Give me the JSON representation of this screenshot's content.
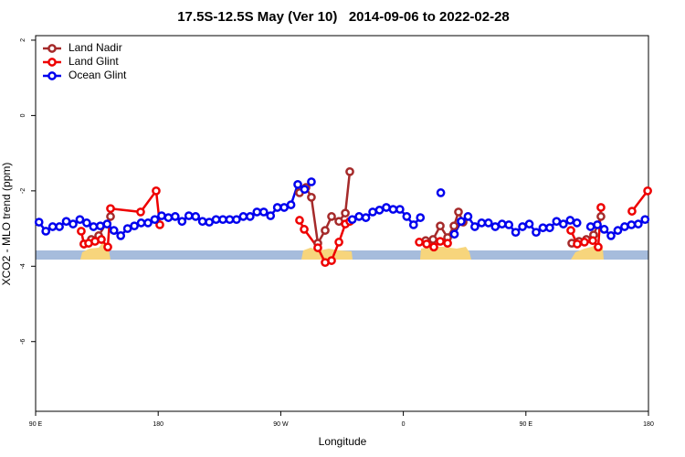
{
  "chart_data": {
    "type": "line",
    "title": "17.5S-12.5S May (Ver 10)   2014-09-06 to 2022-02-28",
    "xlabel": "Longitude",
    "ylabel": "XCO2 - MLO trend (ppm)",
    "xlim": [
      90,
      540
    ],
    "ylim": [
      -7.85,
      2.12
    ],
    "xticks": [
      {
        "value": 90,
        "label": "90 E"
      },
      180,
      {
        "value": 270,
        "label": "90 W"
      },
      {
        "value": 360,
        "label": "0"
      },
      {
        "value": 450,
        "label": "90 E"
      },
      {
        "value": 540,
        "label": "180"
      }
    ],
    "yticks": [
      2,
      0,
      -2,
      -4,
      -6
    ],
    "legend": "top-left",
    "series": [
      {
        "name": "Land Nadir",
        "color": "#a52a2a",
        "x": [
          125.5,
          130.9,
          136.3,
          145,
          null,
          283.8,
          288.5,
          292.5,
          297.2,
          302.6,
          307.3,
          312.7,
          317.4,
          320.7,
          null,
          376.4,
          381.8,
          387.1,
          392.5,
          397.2,
          400.5,
          403.9,
          null,
          483.7,
          489,
          494.4,
          499.7,
          505.1
        ],
        "values": [
          -3.41,
          -3.29,
          -3.19,
          -2.68,
          null,
          -2.05,
          -1.91,
          -2.17,
          -3.39,
          -3.05,
          -2.68,
          -2.81,
          -2.59,
          -1.49,
          null,
          -3.32,
          -3.29,
          -2.93,
          -3.24,
          -2.93,
          -2.56,
          -2.83,
          null,
          -3.39,
          -3.34,
          -3.29,
          -3.17,
          -2.68
        ]
      },
      {
        "name": "Land Glint",
        "color": "#ee0000",
        "x": [
          123.5,
          125.5,
          128.9,
          133.6,
          138.3,
          143,
          145,
          167.1,
          178.5,
          181.2,
          null,
          283.8,
          287.2,
          297.2,
          302.6,
          307.3,
          312.7,
          317.4,
          320.7,
          null,
          371.7,
          377.1,
          382.4,
          387.1,
          392.5,
          null,
          483,
          487.7,
          493,
          499.1,
          503.1,
          505.1,
          null,
          527.9,
          539.4
        ],
        "values": [
          -3.07,
          -3.41,
          -3.39,
          -3.34,
          -3.29,
          -3.49,
          -2.47,
          -2.56,
          -2.0,
          -2.9,
          null,
          -2.78,
          -3.02,
          -3.51,
          -3.9,
          -3.85,
          -3.36,
          -2.88,
          -2.81,
          null,
          -3.36,
          -3.41,
          -3.49,
          -3.34,
          -3.39,
          null,
          -3.05,
          -3.41,
          -3.36,
          -3.32,
          -3.49,
          -2.44,
          null,
          -2.54,
          -2.0
        ]
      },
      {
        "name": "Ocean Glint",
        "color": "#0000ee",
        "x": [
          92.5,
          97.5,
          102.5,
          107.5,
          112.5,
          117.5,
          122.5,
          127.5,
          132.5,
          137.5,
          142.5,
          147.5,
          152.5,
          157.5,
          162.5,
          167.5,
          172.5,
          177.5,
          182.5,
          187.5,
          192.5,
          197.5,
          202.5,
          207.5,
          212.5,
          217.5,
          222.5,
          227.5,
          232.5,
          237.5,
          242.5,
          247.5,
          252.5,
          257.5,
          262.5,
          267.5,
          272.5,
          277.5,
          282.5,
          287.5,
          292.5,
          297.5,
          302.5,
          307.5,
          312.5,
          317.5,
          322.5,
          327.5,
          332.5,
          337.5,
          342.5,
          347.5,
          352.5,
          357.5,
          362.5,
          367.5,
          372.5,
          377.5,
          382.5,
          387.5,
          392.5,
          397.5,
          402.5,
          407.5,
          412.5,
          417.5,
          422.5,
          427.5,
          432.5,
          437.5,
          442.5,
          447.5,
          452.5,
          457.5,
          462.5,
          467.5,
          472.5,
          477.5,
          482.5,
          487.5,
          492.5,
          497.5,
          502.5,
          507.5,
          512.5,
          517.5,
          522.5,
          527.5,
          532.5,
          537.5
        ],
        "values": [
          -2.83,
          -3.07,
          -2.95,
          -2.95,
          -2.81,
          -2.88,
          -2.76,
          -2.85,
          -2.95,
          -2.93,
          -2.88,
          -3.05,
          -3.19,
          -3.0,
          -2.93,
          -2.85,
          -2.85,
          -2.76,
          -2.66,
          -2.71,
          -2.68,
          -2.81,
          -2.66,
          -2.68,
          -2.81,
          -2.83,
          -2.76,
          -2.76,
          -2.76,
          -2.76,
          -2.68,
          -2.68,
          -2.56,
          -2.56,
          -2.66,
          -2.44,
          -2.44,
          -2.37,
          -1.83,
          -1.96,
          -1.76,
          null,
          null,
          null,
          null,
          null,
          -2.76,
          -2.68,
          -2.71,
          -2.56,
          -2.51,
          -2.44,
          -2.49,
          -2.49,
          -2.68,
          -2.9,
          -2.71,
          null,
          null,
          -2.05,
          null,
          -3.15,
          -2.81,
          -2.68,
          -2.95,
          -2.85,
          -2.85,
          -2.95,
          -2.88,
          -2.9,
          -3.1,
          -2.95,
          -2.88,
          -3.1,
          -2.98,
          -2.98,
          -2.81,
          -2.88,
          -2.78,
          -2.85,
          null,
          -2.95,
          -2.9,
          -3.02,
          -3.19,
          -3.05,
          -2.95,
          -2.9,
          -2.88,
          -2.76
        ]
      }
    ]
  }
}
